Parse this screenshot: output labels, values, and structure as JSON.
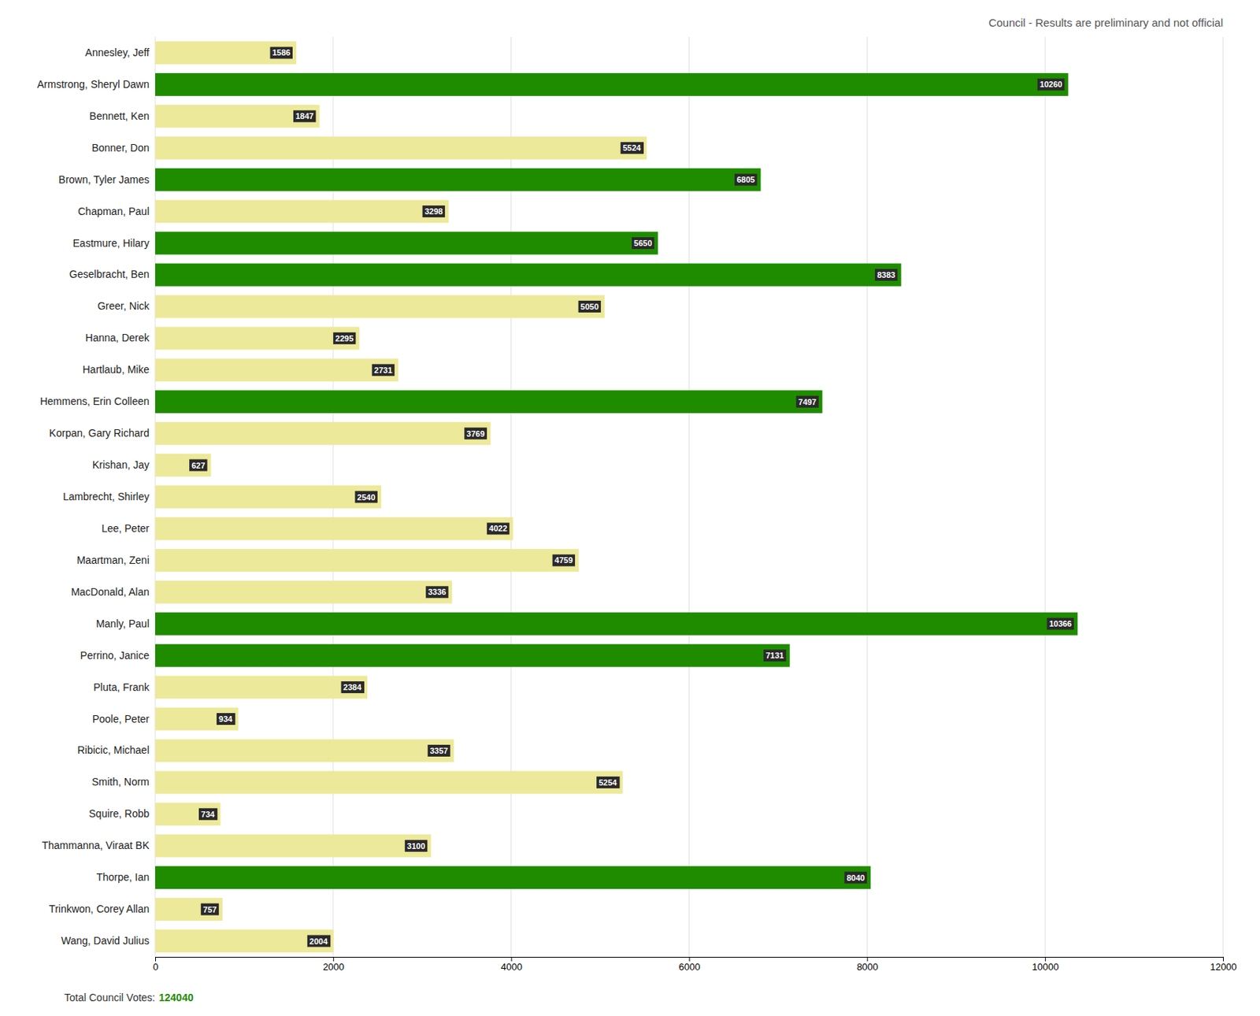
{
  "chart_data": {
    "type": "bar",
    "orientation": "horizontal",
    "title": "Council - Results are preliminary and not official",
    "categories": [
      "Annesley, Jeff",
      "Armstrong, Sheryl Dawn",
      "Bennett, Ken",
      "Bonner, Don",
      "Brown, Tyler James",
      "Chapman, Paul",
      "Eastmure, Hilary",
      "Geselbracht, Ben",
      "Greer, Nick",
      "Hanna, Derek",
      "Hartlaub, Mike",
      "Hemmens, Erin Colleen",
      "Korpan, Gary Richard",
      "Krishan, Jay",
      "Lambrecht, Shirley",
      "Lee, Peter",
      "Maartman, Zeni",
      "MacDonald, Alan",
      "Manly, Paul",
      "Perrino, Janice",
      "Pluta, Frank",
      "Poole, Peter",
      "Ribicic, Michael",
      "Smith, Norm",
      "Squire, Robb",
      "Thammanna, Viraat BK",
      "Thorpe, Ian",
      "Trinkwon, Corey Allan",
      "Wang, David Julius"
    ],
    "values": [
      1586,
      10260,
      1847,
      5524,
      6805,
      3298,
      5650,
      8383,
      5050,
      2295,
      2731,
      7497,
      3769,
      627,
      2540,
      4022,
      4759,
      3336,
      10366,
      7131,
      2384,
      934,
      3357,
      5254,
      734,
      3100,
      8040,
      757,
      2004
    ],
    "colors": [
      "#ede99a",
      "#1f8c00",
      "#ede99a",
      "#ede99a",
      "#1f8c00",
      "#ede99a",
      "#1f8c00",
      "#1f8c00",
      "#ede99a",
      "#ede99a",
      "#ede99a",
      "#1f8c00",
      "#ede99a",
      "#ede99a",
      "#ede99a",
      "#ede99a",
      "#ede99a",
      "#ede99a",
      "#1f8c00",
      "#1f8c00",
      "#ede99a",
      "#ede99a",
      "#ede99a",
      "#ede99a",
      "#ede99a",
      "#ede99a",
      "#1f8c00",
      "#ede99a",
      "#ede99a"
    ],
    "data_labels": true,
    "xlim": [
      0,
      12000
    ],
    "xticks": [
      0,
      2000,
      4000,
      6000,
      8000,
      10000,
      12000
    ],
    "grid": true,
    "annotations": [
      "Total Council Votes:",
      "124040"
    ]
  }
}
